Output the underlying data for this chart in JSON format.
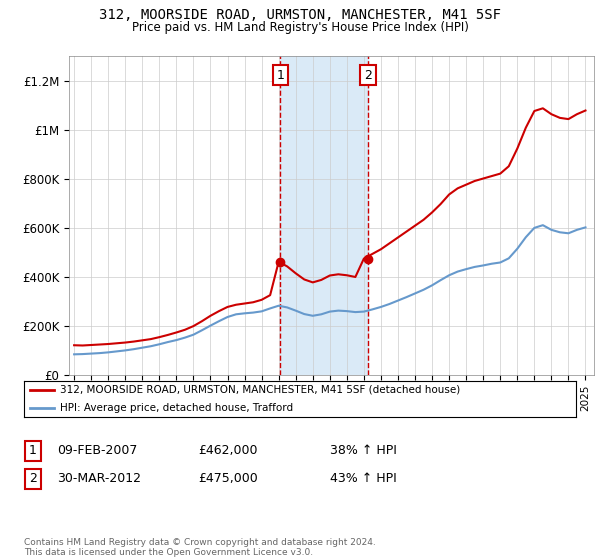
{
  "title": "312, MOORSIDE ROAD, URMSTON, MANCHESTER, M41 5SF",
  "subtitle": "Price paid vs. HM Land Registry's House Price Index (HPI)",
  "ylabel_ticks": [
    "£0",
    "£200K",
    "£400K",
    "£600K",
    "£800K",
    "£1M",
    "£1.2M"
  ],
  "ytick_vals": [
    0,
    200000,
    400000,
    600000,
    800000,
    1000000,
    1200000
  ],
  "ylim": [
    0,
    1300000
  ],
  "sale1": {
    "date": "09-FEB-2007",
    "price": 462000,
    "pct": "38%",
    "label": "1"
  },
  "sale2": {
    "date": "30-MAR-2012",
    "price": 475000,
    "pct": "43%",
    "label": "2"
  },
  "sale1_x": 2007.1,
  "sale2_x": 2012.25,
  "red_color": "#cc0000",
  "blue_color": "#6699cc",
  "shade_color": "#daeaf7",
  "legend_label_red": "312, MOORSIDE ROAD, URMSTON, MANCHESTER, M41 5SF (detached house)",
  "legend_label_blue": "HPI: Average price, detached house, Trafford",
  "footer": "Contains HM Land Registry data © Crown copyright and database right 2024.\nThis data is licensed under the Open Government Licence v3.0.",
  "xlim_start": 1994.7,
  "xlim_end": 2025.5,
  "hpi_years": [
    1995,
    1995.5,
    1996,
    1996.5,
    1997,
    1997.5,
    1998,
    1998.5,
    1999,
    1999.5,
    2000,
    2000.5,
    2001,
    2001.5,
    2002,
    2002.5,
    2003,
    2003.5,
    2004,
    2004.5,
    2005,
    2005.5,
    2006,
    2006.5,
    2007,
    2007.5,
    2008,
    2008.5,
    2009,
    2009.5,
    2010,
    2010.5,
    2011,
    2011.5,
    2012,
    2012.5,
    2013,
    2013.5,
    2014,
    2014.5,
    2015,
    2015.5,
    2016,
    2016.5,
    2017,
    2017.5,
    2018,
    2018.5,
    2019,
    2019.5,
    2020,
    2020.5,
    2021,
    2021.5,
    2022,
    2022.5,
    2023,
    2023.5,
    2024,
    2024.5,
    2025
  ],
  "hpi_vals": [
    85000,
    86000,
    88000,
    90000,
    93000,
    97000,
    101000,
    106000,
    112000,
    118000,
    126000,
    135000,
    143000,
    153000,
    165000,
    183000,
    202000,
    220000,
    237000,
    248000,
    252000,
    255000,
    260000,
    272000,
    283000,
    276000,
    263000,
    249000,
    242000,
    248000,
    259000,
    263000,
    261000,
    257000,
    259000,
    268000,
    278000,
    290000,
    304000,
    318000,
    333000,
    348000,
    366000,
    387000,
    407000,
    422000,
    432000,
    441000,
    447000,
    454000,
    459000,
    476000,
    515000,
    562000,
    600000,
    611000,
    592000,
    582000,
    578000,
    592000,
    602000
  ],
  "red_years": [
    1995,
    1995.5,
    1996,
    1996.5,
    1997,
    1997.5,
    1998,
    1998.5,
    1999,
    1999.5,
    2000,
    2000.5,
    2001,
    2001.5,
    2002,
    2002.5,
    2003,
    2003.5,
    2004,
    2004.5,
    2005,
    2005.5,
    2006,
    2006.5,
    2007,
    2007.5,
    2008,
    2008.5,
    2009,
    2009.5,
    2010,
    2010.5,
    2011,
    2011.5,
    2012,
    2012.5,
    2013,
    2013.5,
    2014,
    2014.5,
    2015,
    2015.5,
    2016,
    2016.5,
    2017,
    2017.5,
    2018,
    2018.5,
    2019,
    2019.5,
    2020,
    2020.5,
    2021,
    2021.5,
    2022,
    2022.5,
    2023,
    2023.5,
    2024,
    2024.5,
    2025
  ],
  "red_vals": [
    122000,
    121000,
    123000,
    125000,
    127000,
    130000,
    133000,
    137000,
    142000,
    147000,
    155000,
    164000,
    174000,
    185000,
    200000,
    220000,
    242000,
    261000,
    278000,
    287000,
    292000,
    297000,
    307000,
    326000,
    462000,
    443000,
    415000,
    390000,
    378000,
    388000,
    406000,
    411000,
    407000,
    400000,
    475000,
    494000,
    513000,
    537000,
    561000,
    585000,
    609000,
    633000,
    663000,
    697000,
    736000,
    761000,
    776000,
    791000,
    801000,
    811000,
    821000,
    851000,
    923000,
    1008000,
    1076000,
    1087000,
    1063000,
    1048000,
    1043000,
    1063000,
    1078000
  ]
}
